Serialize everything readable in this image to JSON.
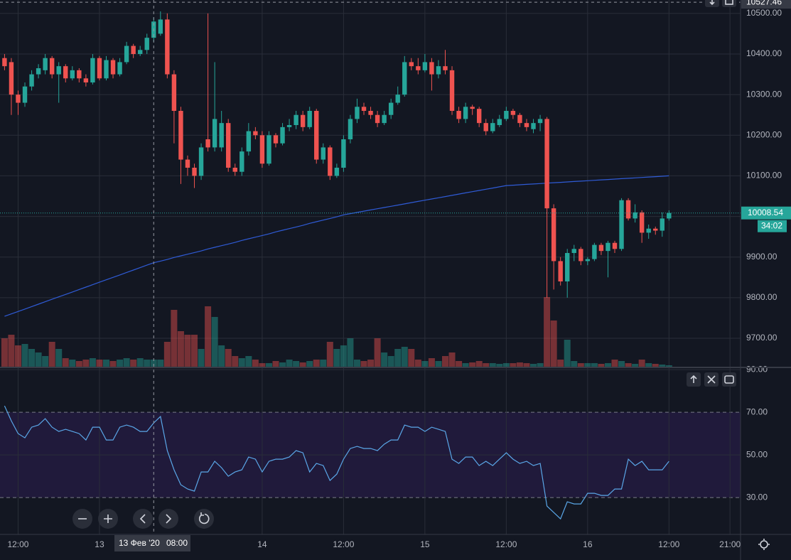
{
  "chart_data": [
    {
      "type": "candlestick",
      "categories": [
        null,
        null,
        "12:00",
        null,
        null,
        null,
        null,
        null,
        null,
        null,
        null,
        null,
        null,
        null,
        "13",
        null,
        null,
        null,
        null,
        null,
        null,
        null,
        null,
        null,
        null,
        null,
        null,
        null,
        null,
        null,
        null,
        null,
        null,
        null,
        null,
        null,
        null,
        null,
        "14",
        null,
        null,
        null,
        null,
        null,
        null,
        null,
        null,
        null,
        null,
        null,
        "12:00",
        null,
        null,
        null,
        null,
        null,
        null,
        null,
        null,
        null,
        null,
        null,
        "15",
        null,
        null,
        null,
        null,
        null,
        null,
        null,
        null,
        null,
        null,
        null,
        "12:00",
        null,
        null,
        null,
        null,
        null,
        null,
        null,
        null,
        null,
        null,
        null,
        "16",
        null,
        null,
        null,
        null,
        null,
        null,
        null,
        null,
        null,
        null,
        null,
        "12:00",
        null,
        null,
        null,
        null,
        null,
        null,
        null,
        null,
        "21:00"
      ],
      "open": [
        10390,
        10380,
        10300,
        10280,
        10320,
        10350,
        10360,
        10390,
        10350,
        10370,
        10340,
        10360,
        10340,
        10330,
        10390,
        10340,
        10385,
        10350,
        10380,
        10420,
        10400,
        10410,
        10440,
        10450,
        10485,
        10350,
        10260,
        10140,
        10120,
        10100,
        10190,
        10170,
        10170,
        10230,
        10120,
        10110,
        10160,
        10210,
        10200,
        10130,
        10200,
        10180,
        10220,
        10225,
        10250,
        10220,
        10260,
        10140,
        10170,
        10100,
        10120,
        10190,
        10240,
        10270,
        10260,
        10250,
        10230,
        10250,
        10280,
        10300,
        10380,
        10370,
        10360,
        10380,
        10350,
        10370,
        10360,
        10260,
        10240,
        10270,
        10265,
        10230,
        10210,
        10225,
        10240,
        10260,
        10250,
        10230,
        10215,
        10230,
        10240,
        10020,
        9890,
        9840,
        9910,
        9920,
        9890,
        9895,
        9930,
        9915,
        9935,
        9920,
        10040,
        9995,
        10010,
        9960,
        9970,
        9965,
        9995,
        null,
        null,
        null,
        null,
        null,
        null,
        null,
        null,
        null
      ],
      "high": [
        10400,
        10390,
        10310,
        10330,
        10360,
        10375,
        10400,
        10395,
        10380,
        10375,
        10370,
        10365,
        10350,
        10400,
        10395,
        10395,
        10390,
        10390,
        10430,
        10425,
        10420,
        10450,
        10490,
        10505,
        10500,
        10360,
        10270,
        10150,
        10130,
        10180,
        10500,
        10380,
        10260,
        10240,
        10130,
        10170,
        10230,
        10220,
        10210,
        10210,
        10205,
        10230,
        10240,
        10260,
        10260,
        10270,
        10265,
        10180,
        10175,
        10130,
        10200,
        10250,
        10290,
        10280,
        10270,
        10260,
        10260,
        10290,
        10320,
        10395,
        10390,
        10390,
        10400,
        10390,
        10385,
        10410,
        10370,
        10270,
        10280,
        10275,
        10270,
        10240,
        10240,
        10250,
        10270,
        10265,
        10255,
        10240,
        10240,
        10250,
        10245,
        10030,
        9900,
        9920,
        9930,
        9925,
        9900,
        9935,
        9935,
        9940,
        9940,
        10045,
        10045,
        10030,
        10015,
        9980,
        9975,
        10010,
        10015,
        null,
        null,
        null,
        null,
        null,
        null,
        null,
        null,
        null
      ],
      "low": [
        10360,
        10250,
        10250,
        10270,
        10310,
        10340,
        10350,
        10340,
        10280,
        10330,
        10335,
        10330,
        10320,
        10325,
        10335,
        10335,
        10340,
        10345,
        10375,
        10390,
        10395,
        10400,
        10430,
        10445,
        10340,
        10180,
        10080,
        10100,
        10070,
        10090,
        10160,
        10160,
        10160,
        10110,
        10100,
        10100,
        10150,
        10190,
        10120,
        10125,
        10170,
        10175,
        10210,
        10215,
        10210,
        10215,
        10130,
        10130,
        10090,
        10095,
        10110,
        10180,
        10230,
        10250,
        10240,
        10220,
        10225,
        10240,
        10275,
        10295,
        10360,
        10350,
        10355,
        10310,
        10340,
        10350,
        10250,
        10230,
        10230,
        10250,
        10220,
        10200,
        10205,
        10220,
        10235,
        10240,
        10220,
        10210,
        10205,
        10210,
        9800,
        9820,
        9830,
        9800,
        9890,
        9880,
        9880,
        9890,
        9905,
        9850,
        9910,
        9915,
        9990,
        9985,
        9935,
        9945,
        9955,
        9950,
        9990,
        null,
        null,
        null,
        null,
        null,
        null,
        null,
        null,
        null
      ],
      "close": [
        10370,
        10300,
        10280,
        10320,
        10350,
        10365,
        10390,
        10350,
        10370,
        10340,
        10360,
        10340,
        10330,
        10390,
        10340,
        10385,
        10350,
        10380,
        10420,
        10400,
        10410,
        10440,
        10480,
        10485,
        10350,
        10260,
        10140,
        10120,
        10100,
        10170,
        10170,
        10240,
        10230,
        10120,
        10110,
        10160,
        10210,
        10200,
        10130,
        10200,
        10180,
        10220,
        10225,
        10250,
        10220,
        10260,
        10140,
        10170,
        10100,
        10120,
        10190,
        10240,
        10270,
        10260,
        10250,
        10230,
        10250,
        10280,
        10300,
        10380,
        10370,
        10360,
        10380,
        10350,
        10370,
        10360,
        10260,
        10240,
        10270,
        10265,
        10230,
        10210,
        10230,
        10240,
        10260,
        10250,
        10230,
        10220,
        10230,
        10240,
        10020,
        9890,
        9840,
        9910,
        9920,
        9890,
        9895,
        9930,
        9915,
        9935,
        9920,
        10040,
        9995,
        10010,
        9960,
        9970,
        9965,
        9995,
        10008.54,
        null,
        null,
        null,
        null,
        null,
        null,
        null,
        null,
        null
      ],
      "volume": [
        40,
        45,
        30,
        32,
        25,
        20,
        15,
        35,
        25,
        12,
        10,
        8,
        10,
        12,
        10,
        10,
        8,
        10,
        12,
        10,
        12,
        10,
        10,
        10,
        35,
        80,
        50,
        45,
        45,
        25,
        85,
        70,
        30,
        25,
        15,
        12,
        15,
        10,
        5,
        5,
        8,
        6,
        10,
        8,
        6,
        8,
        10,
        10,
        35,
        25,
        30,
        40,
        10,
        8,
        10,
        40,
        20,
        15,
        25,
        28,
        25,
        10,
        8,
        12,
        8,
        15,
        20,
        8,
        5,
        6,
        8,
        5,
        5,
        4,
        5,
        5,
        6,
        5,
        4,
        5,
        98,
        65,
        10,
        38,
        8,
        5,
        5,
        5,
        4,
        5,
        10,
        8,
        5,
        4,
        10,
        5,
        4,
        3,
        2,
        null,
        null,
        null,
        null,
        null,
        null,
        null,
        null,
        null
      ],
      "ma": [
        9754,
        9760,
        9766,
        9772,
        9778,
        9784,
        9790,
        9796,
        9802,
        9808,
        9814,
        9820,
        9826,
        9832,
        9838,
        9844,
        9850,
        9856,
        9862,
        9868,
        9874,
        9880,
        9886,
        9890,
        9894,
        9899,
        9903,
        9907,
        9911,
        9915,
        9920,
        9924,
        9928,
        9932,
        9936,
        9941,
        9945,
        9949,
        9953,
        9957,
        9962,
        9966,
        9970,
        9974,
        9978,
        9983,
        9987,
        9991,
        9995,
        9999,
        10004,
        10007,
        10010,
        10013,
        10016,
        10019,
        10022,
        10025,
        10028,
        10031,
        10034,
        10037,
        10040,
        10043,
        10046,
        10049,
        10052,
        10055,
        10058,
        10061,
        10064,
        10067,
        10070,
        10073,
        10076,
        10077,
        10078,
        10079,
        10080,
        10081,
        10082,
        10083,
        10084,
        10085,
        10086,
        10087,
        10088,
        10089,
        10090,
        10091,
        10092,
        10093,
        10094,
        10095,
        10096,
        10097,
        10098,
        10099,
        10100,
        null,
        null,
        null,
        null,
        null,
        null,
        null,
        null,
        null
      ],
      "up_color": "#26a69a",
      "down_color": "#ef5350",
      "ma_color": "#2f5bd6",
      "ylim": [
        9630,
        10533
      ],
      "yticks": [
        {
          "value": 9700,
          "label": "9700.00"
        },
        {
          "value": 9800,
          "label": "9800.00"
        },
        {
          "value": 9900,
          "label": "9900.00"
        },
        {
          "value": 10000,
          "label": "10000.00"
        },
        {
          "value": 10100,
          "label": "10100.00"
        },
        {
          "value": 10200,
          "label": "10200.00"
        },
        {
          "value": 10300,
          "label": "10300.00"
        },
        {
          "value": 10400,
          "label": "10400.00"
        },
        {
          "value": 10500,
          "label": "10500.00"
        }
      ],
      "crosshair_price": 10527.46,
      "countdown": "34:02",
      "grid": true
    },
    {
      "type": "line",
      "values": [
        73,
        66,
        60,
        58,
        63,
        64,
        67,
        63,
        61,
        62,
        61,
        60,
        57,
        63,
        63,
        57,
        57,
        63,
        64,
        63,
        61,
        61,
        65,
        68,
        52,
        43,
        36,
        34,
        33,
        42,
        42,
        47,
        44,
        40,
        42,
        43,
        49,
        48,
        42,
        47,
        48,
        48,
        49,
        52,
        51,
        42,
        46,
        45,
        38,
        41,
        48,
        53,
        54,
        53,
        53,
        52,
        55,
        57,
        57,
        64,
        63,
        63,
        61,
        63,
        62,
        61,
        48,
        46,
        49,
        49,
        45,
        47,
        45,
        48,
        51,
        48,
        46,
        47,
        45,
        46,
        26,
        23,
        20,
        28,
        27,
        27,
        32,
        32,
        31,
        31,
        34,
        34,
        48,
        45,
        47,
        43,
        43,
        43,
        47,
        null,
        null,
        null,
        null,
        null,
        null,
        null,
        null,
        null
      ],
      "color": "#5aa7e8",
      "ylim": [
        12.7,
        90.7
      ],
      "yticks": [
        {
          "value": 30,
          "label": "30.00"
        },
        {
          "value": 50,
          "label": "50.00"
        },
        {
          "value": 70,
          "label": "70.00"
        },
        {
          "value": 90,
          "label": "90.00"
        }
      ],
      "band": [
        30,
        70
      ],
      "band_color": "#201a3b",
      "grid": true
    }
  ],
  "crosshair": {
    "date": "13 Фев '20",
    "time": "08:00"
  }
}
